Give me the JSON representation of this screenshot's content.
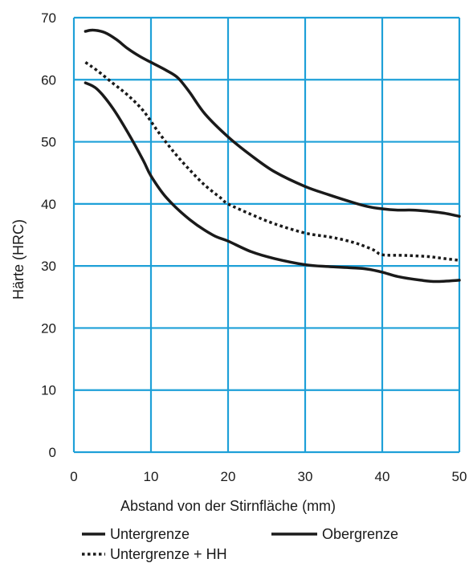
{
  "chart_data": {
    "type": "line",
    "xlabel": "Abstand von der Stirnfläche (mm)",
    "ylabel": "Härte (HRC)",
    "xlim": [
      0,
      50
    ],
    "ylim": [
      0,
      70
    ],
    "xticks": [
      0,
      10,
      20,
      30,
      40,
      50
    ],
    "yticks": [
      0,
      10,
      20,
      30,
      40,
      50,
      60,
      70
    ],
    "x_tick_labels": [
      "0",
      "10",
      "20",
      "30",
      "40",
      "50"
    ],
    "y_tick_labels": [
      "0",
      "10",
      "20",
      "30",
      "40",
      "50",
      "60",
      "70"
    ],
    "grid": true,
    "grid_color": "#1ea0d8",
    "legend_position": "bottom",
    "series": [
      {
        "name": "Untergrenze",
        "style": "solid",
        "color": "#1a1a1a",
        "points": [
          [
            1.5,
            59.5
          ],
          [
            3,
            58.5
          ],
          [
            5,
            55.5
          ],
          [
            7,
            51.5
          ],
          [
            9,
            47
          ],
          [
            10,
            44.5
          ],
          [
            12,
            41
          ],
          [
            15,
            37.5
          ],
          [
            18,
            35
          ],
          [
            20,
            34
          ],
          [
            23,
            32.3
          ],
          [
            26,
            31.2
          ],
          [
            30,
            30.2
          ],
          [
            33,
            29.9
          ],
          [
            36,
            29.7
          ],
          [
            38,
            29.5
          ],
          [
            40,
            29
          ],
          [
            42,
            28.3
          ],
          [
            45,
            27.7
          ],
          [
            47,
            27.5
          ],
          [
            50,
            27.7
          ]
        ]
      },
      {
        "name": "Obergrenze",
        "style": "solid",
        "color": "#1a1a1a",
        "points": [
          [
            1.5,
            67.8
          ],
          [
            2.5,
            68
          ],
          [
            4,
            67.6
          ],
          [
            5.5,
            66.5
          ],
          [
            7,
            65
          ],
          [
            8.5,
            63.8
          ],
          [
            10,
            62.8
          ],
          [
            12,
            61.5
          ],
          [
            13.5,
            60.3
          ],
          [
            15,
            58
          ],
          [
            17,
            54.5
          ],
          [
            20,
            50.8
          ],
          [
            23,
            47.8
          ],
          [
            26,
            45.2
          ],
          [
            30,
            42.8
          ],
          [
            33,
            41.5
          ],
          [
            36,
            40.3
          ],
          [
            38,
            39.6
          ],
          [
            40,
            39.2
          ],
          [
            42,
            39
          ],
          [
            44,
            39
          ],
          [
            46,
            38.8
          ],
          [
            48,
            38.5
          ],
          [
            50,
            38
          ]
        ]
      },
      {
        "name": "Untergrenze + HH",
        "style": "dotted",
        "color": "#1a1a1a",
        "points": [
          [
            1.5,
            62.8
          ],
          [
            3,
            61.5
          ],
          [
            5,
            59.5
          ],
          [
            7,
            57.5
          ],
          [
            9,
            55
          ],
          [
            11,
            51.5
          ],
          [
            13,
            48.3
          ],
          [
            15,
            45.5
          ],
          [
            17,
            43
          ],
          [
            19,
            41
          ],
          [
            20,
            40
          ],
          [
            23,
            38.3
          ],
          [
            26,
            36.8
          ],
          [
            30,
            35.3
          ],
          [
            33,
            34.7
          ],
          [
            35,
            34.2
          ],
          [
            37,
            33.5
          ],
          [
            39,
            32.5
          ],
          [
            40,
            31.8
          ],
          [
            43,
            31.7
          ],
          [
            46,
            31.5
          ],
          [
            48,
            31.2
          ],
          [
            50,
            30.9
          ]
        ]
      }
    ]
  }
}
